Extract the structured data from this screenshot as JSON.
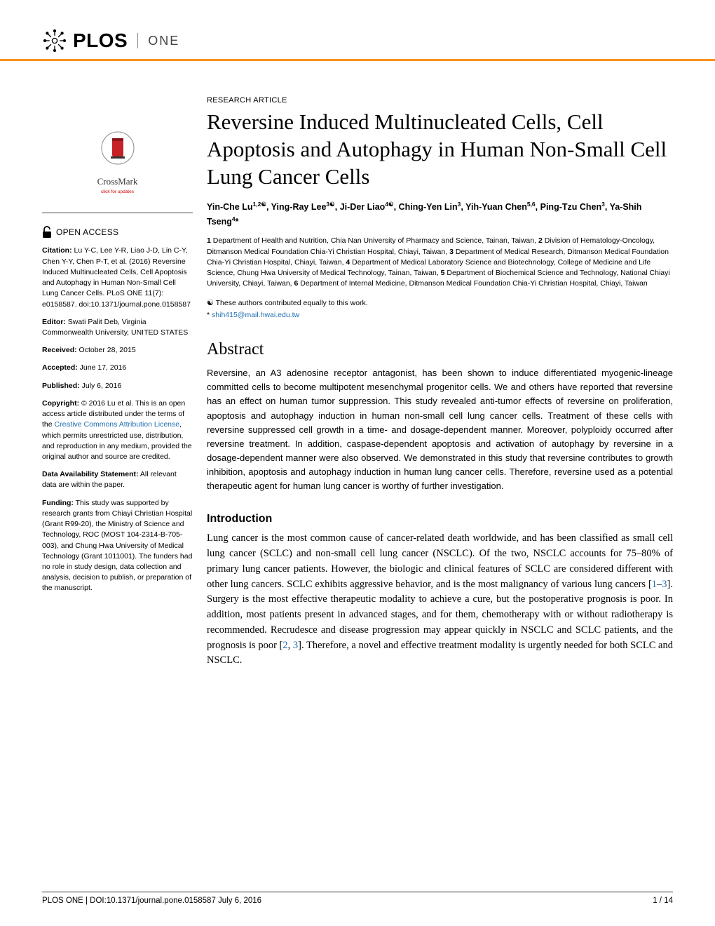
{
  "header": {
    "journal_main": "PLOS",
    "journal_sub": "ONE"
  },
  "crossmark": {
    "label": "CrossMark",
    "sub": "click for updates"
  },
  "open_access": "OPEN ACCESS",
  "sidebar": {
    "citation_label": "Citation:",
    "citation_text": " Lu Y-C, Lee Y-R, Liao J-D, Lin C-Y, Chen Y-Y, Chen P-T, et al. (2016) Reversine Induced Multinucleated Cells, Cell Apoptosis and Autophagy in Human Non-Small Cell Lung Cancer Cells. PLoS ONE 11(7): e0158587. doi:10.1371/journal.pone.0158587",
    "editor_label": "Editor:",
    "editor_text": " Swati Palit Deb, Virginia Commonwealth University, UNITED STATES",
    "received_label": "Received:",
    "received_text": " October 28, 2015",
    "accepted_label": "Accepted:",
    "accepted_text": " June 17, 2016",
    "published_label": "Published:",
    "published_text": " July 6, 2016",
    "copyright_label": "Copyright:",
    "copyright_text_pre": " © 2016 Lu et al. This is an open access article distributed under the terms of the ",
    "copyright_link": "Creative Commons Attribution License",
    "copyright_text_post": ", which permits unrestricted use, distribution, and reproduction in any medium, provided the original author and source are credited.",
    "data_label": "Data Availability Statement:",
    "data_text": " All relevant data are within the paper.",
    "funding_label": "Funding:",
    "funding_text": " This study was supported by research grants from Chiayi Christian Hospital (Grant R99-20), the Ministry of Science and Technology, ROC (MOST 104-2314-B-705-003), and Chung Hwa University of Medical Technology (Grant 1011001). The funders had no role in study design, data collection and analysis, decision to publish, or preparation of the manuscript."
  },
  "article": {
    "type": "RESEARCH ARTICLE",
    "title": "Reversine Induced Multinucleated Cells, Cell Apoptosis and Autophagy in Human Non-Small Cell Lung Cancer Cells",
    "authors_html": "Yin-Che Lu<sup>1,2☯</sup>, Ying-Ray Lee<sup>3☯</sup>, Ji-Der Liao<sup>4☯</sup>, Ching-Yen Lin<sup>3</sup>, Yih-Yuan Chen<sup>5,6</sup>, Ping-Tzu Chen<sup>3</sup>, Ya-Shih Tseng<sup>4</sup>*",
    "affiliations_html": "<b>1</b> Department of Health and Nutrition, Chia Nan University of Pharmacy and Science, Tainan, Taiwan, <b>2</b> Division of Hematology-Oncology, Ditmanson Medical Foundation Chia-Yi Christian Hospital, Chiayi, Taiwan, <b>3</b> Department of Medical Research, Ditmanson Medical Foundation Chia-Yi Christian Hospital, Chiayi, Taiwan, <b>4</b> Department of Medical Laboratory Science and Biotechnology, College of Medicine and Life Science, Chung Hwa University of Medical Technology, Tainan, Taiwan, <b>5</b> Department of Biochemical Science and Technology, National Chiayi University, Chiayi, Taiwan, <b>6</b> Department of Internal Medicine, Ditmanson Medical Foundation Chia-Yi Christian Hospital, Chiayi, Taiwan",
    "contrib": "These authors contributed equally to this work.",
    "contrib_symbol": "☯",
    "corresp_symbol": "*",
    "corresp_email": "shih415@mail.hwai.edu.tw",
    "abstract_heading": "Abstract",
    "abstract": "Reversine, an A3 adenosine receptor antagonist, has been shown to induce differentiated myogenic-lineage committed cells to become multipotent mesenchymal progenitor cells. We and others have reported that reversine has an effect on human tumor suppression. This study revealed anti-tumor effects of reversine on proliferation, apoptosis and autophagy induction in human non-small cell lung cancer cells. Treatment of these cells with reversine suppressed cell growth in a time- and dosage-dependent manner. Moreover, polyploidy occurred after reversine treatment. In addition, caspase-dependent apoptosis and activation of autophagy by reversine in a dosage-dependent manner were also observed. We demonstrated in this study that reversine contributes to growth inhibition, apoptosis and autophagy induction in human lung cancer cells. Therefore, reversine used as a potential therapeutic agent for human lung cancer is worthy of further investigation.",
    "intro_heading": "Introduction",
    "intro_html": "Lung cancer is the most common cause of cancer-related death worldwide, and has been classified as small cell lung cancer (SCLC) and non-small cell lung cancer (NSCLC). Of the two, NSCLC accounts for 75–80% of primary lung cancer patients. However, the biologic and clinical features of SCLC are considered different with other lung cancers. SCLC exhibits aggressive behavior, and is the most malignancy of various lung cancers [<a class='link' href='#'>1</a>–<a class='link' href='#'>3</a>]. Surgery is the most effective therapeutic modality to achieve a cure, but the postoperative prognosis is poor. In addition, most patients present in advanced stages, and for them, chemotherapy with or without radiotherapy is recommended. Recrudesce and disease progression may appear quickly in NSCLC and SCLC patients, and the prognosis is poor [<a class='link' href='#'>2</a>, <a class='link' href='#'>3</a>]. Therefore, a novel and effective treatment modality is urgently needed for both SCLC and NSCLC."
  },
  "footer": {
    "left": "PLOS ONE | DOI:10.1371/journal.pone.0158587    July 6, 2016",
    "right": "1 / 14"
  },
  "colors": {
    "accent": "#f7931e",
    "link": "#1f6fb2",
    "crossmark_red": "#c52127"
  }
}
